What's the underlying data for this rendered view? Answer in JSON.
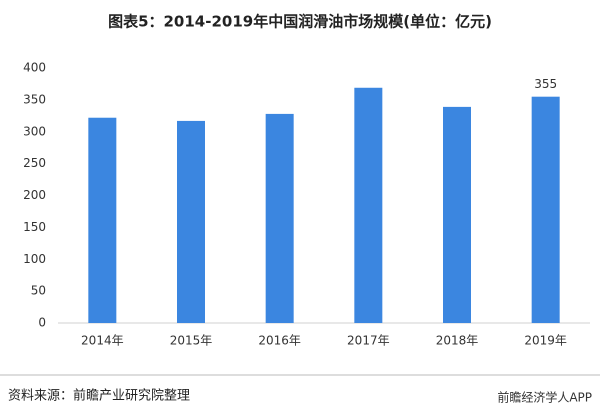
{
  "chart_data": {
    "type": "bar",
    "title": "图表5：2014-2019年中国润滑油市场规模(单位：亿元)",
    "categories": [
      "2014年",
      "2015年",
      "2016年",
      "2017年",
      "2018年",
      "2019年"
    ],
    "values": [
      322,
      317,
      328,
      369,
      339,
      355
    ],
    "color": "#3b86e0",
    "ylim": [
      0,
      400
    ],
    "yticks": [
      0,
      50,
      100,
      150,
      200,
      250,
      300,
      350,
      400
    ],
    "grid": false,
    "source": "资料来源：前瞻产业研究院整理",
    "brand": "前瞻经济学人APP"
  }
}
